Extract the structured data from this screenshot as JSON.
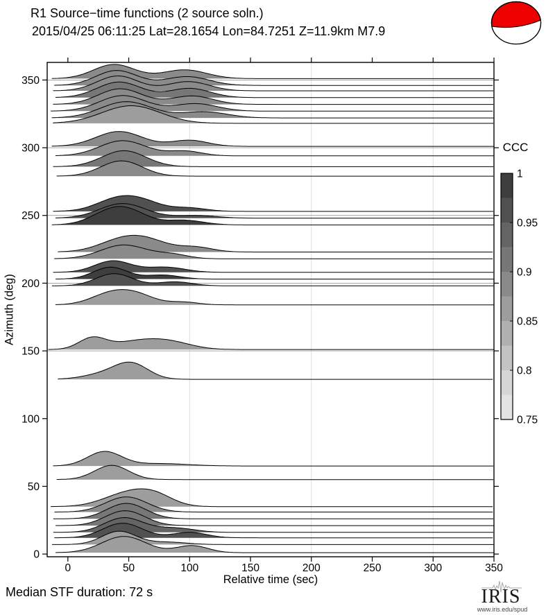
{
  "header": {
    "title_line1": "R1 Source−time functions (2 source soln.)",
    "title_line2": "2015/04/25 06:11:25  Lat=28.1654 Lon=84.7251  Z=11.9km  M7.9"
  },
  "footer": {
    "median_note": "Median STF duration: 72 s",
    "logo_text": "IRIS",
    "logo_sub": "www.iris.edu/spud"
  },
  "beachball": {
    "fill_color": "#ee0000",
    "outline_color": "#000000"
  },
  "chart_data": {
    "type": "area",
    "title": "R1 Source−time functions (2 source soln.)",
    "subtitle": "2015/04/25 06:11:25  Lat=28.1654 Lon=84.7251  Z=11.9km  M7.9",
    "xlabel": "Relative time (sec)",
    "ylabel": "Azimuth (deg)",
    "xlim": [
      -17,
      350
    ],
    "ylim": [
      -2,
      363
    ],
    "xticks": [
      0,
      50,
      100,
      150,
      200,
      250,
      300,
      350
    ],
    "xtick_labels": [
      "0",
      "50",
      "100",
      "150",
      "200",
      "250",
      "300",
      "350"
    ],
    "yticks": [
      0,
      50,
      100,
      150,
      200,
      250,
      300,
      350
    ],
    "ytick_labels": [
      "0",
      "50",
      "100",
      "150",
      "200",
      "250",
      "300",
      "350"
    ],
    "grid_x": [
      100,
      200,
      300
    ],
    "grid_y": [
      150,
      200,
      250,
      300,
      350
    ],
    "grid_on": true,
    "legend_position": "none",
    "colorbar": {
      "label": "CCC",
      "min": 0.75,
      "max": 1.0,
      "ticks": [
        1,
        0.95,
        0.9,
        0.85,
        0.8,
        0.75
      ],
      "tick_labels": [
        "1",
        "0.95",
        "0.9",
        "0.85",
        "0.8",
        "0.75"
      ],
      "colors_top_to_bottom": [
        "#3e3e3e",
        "#515151",
        "#646464",
        "#777777",
        "#8a8a8a",
        "#9d9d9d",
        "#b0b0b0",
        "#c3c3c3",
        "#d6d6d6",
        "#e3e3e3"
      ]
    },
    "traces_note": "Each source-time function: azimuth baseline (deg), cross-correlation coefficient ccc (sets gray fill), onset time t0 (sec), and gaussian bumps [center_sec, width_sec, amplitude_deg]",
    "traces": [
      {
        "az": 351,
        "ccc": 0.89,
        "t0": -13,
        "bumps": [
          [
            38,
            17,
            10.5
          ],
          [
            96,
            18,
            6.5
          ]
        ]
      },
      {
        "az": 346,
        "ccc": 0.895,
        "t0": -11,
        "bumps": [
          [
            40,
            17,
            11
          ],
          [
            98,
            18,
            6.5
          ]
        ]
      },
      {
        "az": 342,
        "ccc": 0.9,
        "t0": -12,
        "bumps": [
          [
            41,
            17,
            11
          ],
          [
            99,
            17,
            6.8
          ]
        ]
      },
      {
        "az": 337,
        "ccc": 0.905,
        "t0": -10,
        "bumps": [
          [
            42,
            18,
            11.5
          ],
          [
            100,
            17,
            6.8
          ]
        ]
      },
      {
        "az": 332,
        "ccc": 0.895,
        "t0": -12,
        "bumps": [
          [
            43,
            18,
            11.5
          ],
          [
            102,
            17,
            6.2
          ]
        ]
      },
      {
        "az": 327,
        "ccc": 0.89,
        "t0": -14,
        "bumps": [
          [
            45,
            19,
            11.5
          ],
          [
            105,
            18,
            5.5
          ]
        ]
      },
      {
        "az": 322,
        "ccc": 0.885,
        "t0": -13,
        "bumps": [
          [
            48,
            21,
            12
          ],
          [
            112,
            19,
            4.5
          ]
        ]
      },
      {
        "az": 318,
        "ccc": 0.855,
        "t0": -12,
        "bumps": [
          [
            52,
            24,
            13
          ]
        ]
      },
      {
        "az": 301,
        "ccc": 0.89,
        "t0": -13,
        "bumps": [
          [
            42,
            19,
            11
          ],
          [
            100,
            15,
            4.5
          ]
        ]
      },
      {
        "az": 294,
        "ccc": 0.89,
        "t0": -10,
        "bumps": [
          [
            45,
            19,
            11.2
          ],
          [
            96,
            14,
            3.5
          ]
        ]
      },
      {
        "az": 286,
        "ccc": 0.905,
        "t0": -12,
        "bumps": [
          [
            46,
            18,
            11.8
          ]
        ]
      },
      {
        "az": 279,
        "ccc": 0.895,
        "t0": -9,
        "bumps": [
          [
            44,
            17,
            11.3
          ]
        ]
      },
      {
        "az": 253,
        "ccc": 0.97,
        "t0": -12,
        "bumps": [
          [
            40,
            17,
            8.5
          ],
          [
            62,
            16,
            6
          ],
          [
            100,
            14,
            2.5
          ]
        ]
      },
      {
        "az": 248,
        "ccc": 0.965,
        "t0": -10,
        "bumps": [
          [
            45,
            19,
            10.8
          ],
          [
            105,
            17,
            2
          ]
        ]
      },
      {
        "az": 243,
        "ccc": 0.995,
        "t0": -13,
        "bumps": [
          [
            38,
            17,
            11.5
          ],
          [
            56,
            14,
            4
          ],
          [
            95,
            16,
            3.5
          ]
        ]
      },
      {
        "az": 223,
        "ccc": 0.885,
        "t0": -8,
        "bumps": [
          [
            45,
            19,
            9
          ],
          [
            68,
            17,
            6
          ],
          [
            105,
            14,
            3.5
          ]
        ]
      },
      {
        "az": 218,
        "ccc": 0.88,
        "t0": -11,
        "bumps": [
          [
            46,
            19,
            10.2
          ],
          [
            86,
            13,
            3
          ]
        ]
      },
      {
        "az": 208,
        "ccc": 0.97,
        "t0": -12,
        "bumps": [
          [
            37,
            15,
            8.5
          ],
          [
            80,
            16,
            3.8
          ]
        ]
      },
      {
        "az": 203,
        "ccc": 0.985,
        "t0": -10,
        "bumps": [
          [
            35,
            14,
            8.8
          ],
          [
            78,
            14,
            3
          ]
        ]
      },
      {
        "az": 198,
        "ccc": 0.955,
        "t0": -13,
        "bumps": [
          [
            38,
            15,
            9
          ],
          [
            88,
            14,
            3
          ]
        ]
      },
      {
        "az": 184,
        "ccc": 0.855,
        "t0": -10,
        "bumps": [
          [
            35,
            16,
            8
          ],
          [
            57,
            15,
            6.5
          ],
          [
            95,
            12,
            2
          ]
        ]
      },
      {
        "az": 151,
        "ccc": 0.87,
        "t0": -16,
        "bumps": [
          [
            20,
            11,
            8
          ],
          [
            58,
            22,
            6
          ],
          [
            85,
            18,
            4
          ]
        ]
      },
      {
        "az": 129,
        "ccc": 0.87,
        "t0": -8,
        "bumps": [
          [
            52,
            14,
            11.5
          ],
          [
            28,
            16,
            3.5
          ]
        ]
      },
      {
        "az": 65,
        "ccc": 0.865,
        "t0": -12,
        "bumps": [
          [
            30,
            14,
            10.5
          ],
          [
            75,
            24,
            1.8
          ]
        ]
      },
      {
        "az": 55,
        "ccc": 0.87,
        "t0": -9,
        "bumps": [
          [
            36,
            14,
            10.5
          ]
        ]
      },
      {
        "az": 35,
        "ccc": 0.865,
        "t0": -14,
        "bumps": [
          [
            50,
            20,
            10
          ],
          [
            72,
            15,
            6
          ]
        ]
      },
      {
        "az": 31,
        "ccc": 0.88,
        "t0": -11,
        "bumps": [
          [
            48,
            17,
            11.2
          ]
        ]
      },
      {
        "az": 26,
        "ccc": 0.905,
        "t0": -12,
        "bumps": [
          [
            48,
            16,
            11.4
          ]
        ]
      },
      {
        "az": 21,
        "ccc": 0.92,
        "t0": -10,
        "bumps": [
          [
            47,
            16,
            11
          ]
        ]
      },
      {
        "az": 16,
        "ccc": 0.945,
        "t0": -12,
        "bumps": [
          [
            46,
            16,
            10.8
          ],
          [
            88,
            16,
            3.2
          ]
        ]
      },
      {
        "az": 12,
        "ccc": 0.955,
        "t0": -11,
        "bumps": [
          [
            45,
            16,
            10.8
          ],
          [
            100,
            14,
            4
          ]
        ]
      },
      {
        "az": 7,
        "ccc": 0.855,
        "t0": -13,
        "bumps": [
          [
            42,
            14,
            9.8
          ],
          [
            82,
            16,
            1.8
          ]
        ]
      },
      {
        "az": 1,
        "ccc": 0.855,
        "t0": -10,
        "bumps": [
          [
            46,
            18,
            12
          ],
          [
            102,
            13,
            5.2
          ]
        ]
      }
    ]
  }
}
